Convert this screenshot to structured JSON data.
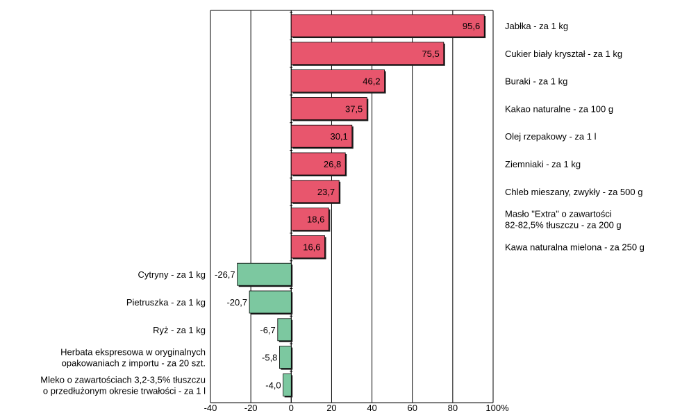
{
  "chart_data": {
    "type": "bar",
    "orientation": "horizontal",
    "title": "",
    "xlabel": "",
    "ylabel": "",
    "xlim": [
      -40,
      100
    ],
    "x_ticks": [
      "-40",
      "-20",
      "0",
      "20",
      "40",
      "60",
      "80",
      "100%"
    ],
    "grid": true,
    "colors": {
      "positive": "#e8566d",
      "negative": "#7cc8a0",
      "edge": "#000000"
    },
    "bars": [
      {
        "label": [
          "Jabłka - za 1 kg"
        ],
        "value": 95.6,
        "value_label": "95,6"
      },
      {
        "label": [
          "Cukier biały kryształ - za 1 kg"
        ],
        "value": 75.5,
        "value_label": "75,5"
      },
      {
        "label": [
          "Buraki - za 1 kg"
        ],
        "value": 46.2,
        "value_label": "46,2"
      },
      {
        "label": [
          "Kakao naturalne - za 100 g"
        ],
        "value": 37.5,
        "value_label": "37,5"
      },
      {
        "label": [
          "Olej rzepakowy - za 1 l"
        ],
        "value": 30.1,
        "value_label": "30,1"
      },
      {
        "label": [
          "Ziemniaki - za 1 kg"
        ],
        "value": 26.8,
        "value_label": "26,8"
      },
      {
        "label": [
          "Chleb mieszany, zwykły - za 500 g"
        ],
        "value": 23.7,
        "value_label": "23,7"
      },
      {
        "label": [
          "Masło \"Extra\" o zawartości",
          "82-82,5% tłuszczu - za 200 g"
        ],
        "value": 18.6,
        "value_label": "18,6"
      },
      {
        "label": [
          "Kawa naturalna mielona - za 250 g"
        ],
        "value": 16.6,
        "value_label": "16,6"
      },
      {
        "label": [
          "Cytryny - za 1 kg"
        ],
        "value": -26.7,
        "value_label": "-26,7"
      },
      {
        "label": [
          "Pietruszka - za 1 kg"
        ],
        "value": -20.7,
        "value_label": "-20,7"
      },
      {
        "label": [
          "Ryż - za 1 kg"
        ],
        "value": -6.7,
        "value_label": "-6,7"
      },
      {
        "label": [
          "Herbata ekspresowa w oryginalnych",
          "opakowaniach z importu - za 20 szt."
        ],
        "value": -5.8,
        "value_label": "-5,8"
      },
      {
        "label": [
          "Mleko o zawartościach 3,2-3,5% tłuszczu",
          "o przedłużonym okresie trwałości - za 1 l"
        ],
        "value": -4.0,
        "value_label": "-4,0"
      }
    ]
  }
}
